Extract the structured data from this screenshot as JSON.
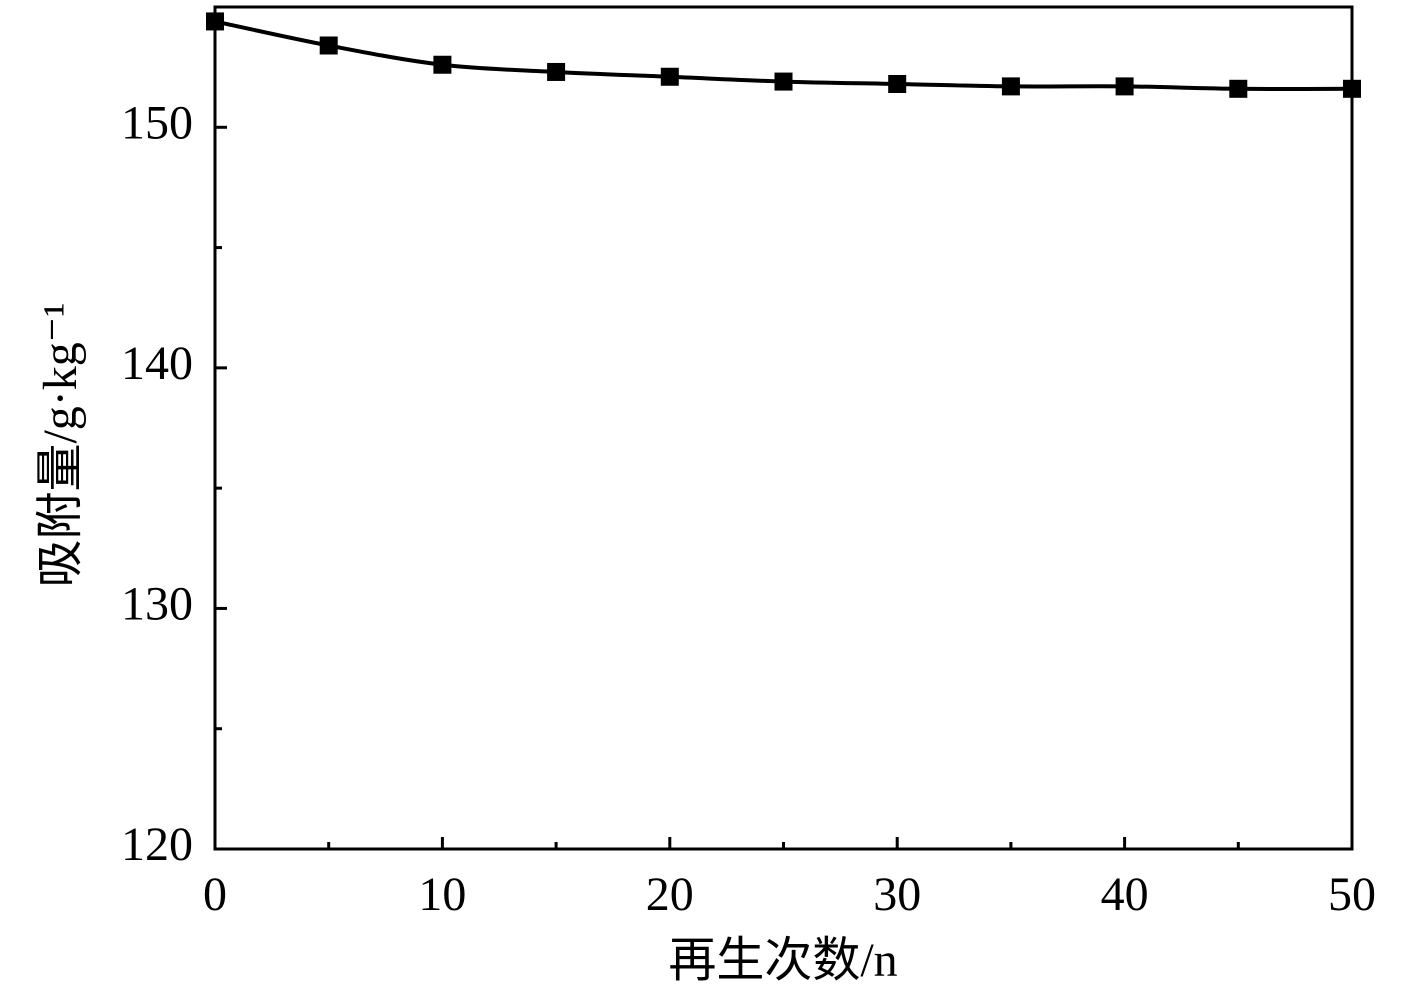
{
  "chart_data": {
    "type": "line",
    "xlabel": "再生次数/n",
    "ylabel": "吸附量/g·kg⁻¹",
    "x": [
      0,
      5,
      10,
      15,
      20,
      25,
      30,
      35,
      40,
      45,
      50
    ],
    "series": [
      {
        "color": "#000000",
        "values": [
          154.4,
          153.4,
          152.6,
          152.3,
          152.1,
          151.9,
          151.8,
          151.7,
          151.7,
          151.6,
          151.6
        ]
      }
    ],
    "xlim": [
      0,
      50
    ],
    "xticks": [
      0,
      10,
      20,
      30,
      40,
      50
    ],
    "xminorticks": [
      5,
      15,
      25,
      35,
      45
    ],
    "ylim": [
      120,
      155
    ],
    "yticks": [
      120,
      130,
      140,
      150
    ],
    "yminorticks": [
      125,
      135,
      145
    ]
  }
}
